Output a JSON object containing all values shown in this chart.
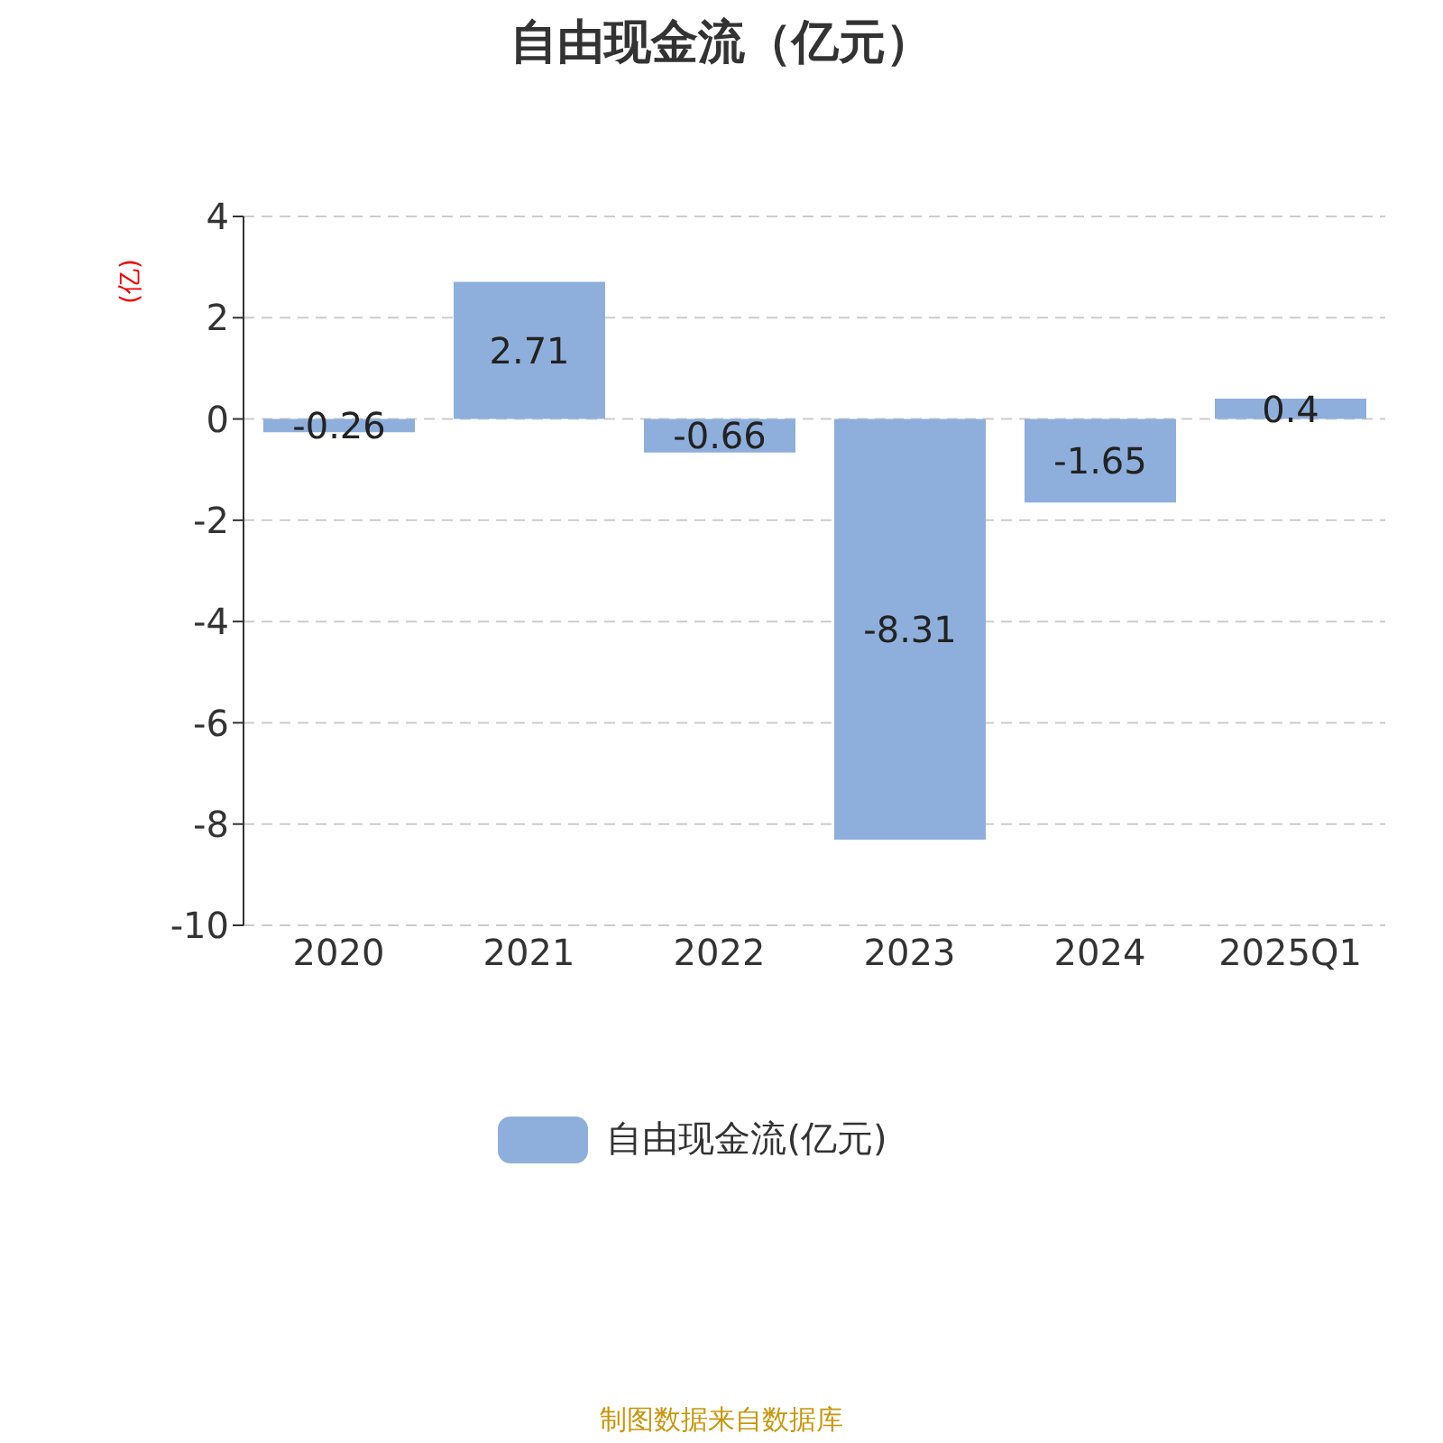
{
  "chart_data": {
    "type": "bar",
    "title": "自由现金流（亿元）",
    "ylabel": "(亿)",
    "categories": [
      "2020",
      "2021",
      "2022",
      "2023",
      "2024",
      "2025Q1"
    ],
    "series": [
      {
        "name": "自由现金流(亿元)",
        "color": "#8eafdb",
        "values": [
          -0.26,
          2.71,
          -0.66,
          -8.31,
          -1.65,
          0.4
        ]
      }
    ],
    "ylim": [
      -10,
      4
    ],
    "yticks": [
      -10,
      -8,
      -6,
      -4,
      -2,
      0,
      2,
      4
    ],
    "grid": "y",
    "legend": "bottom",
    "data_labels": true,
    "annotations": [
      "制图数据来自数据库"
    ]
  }
}
